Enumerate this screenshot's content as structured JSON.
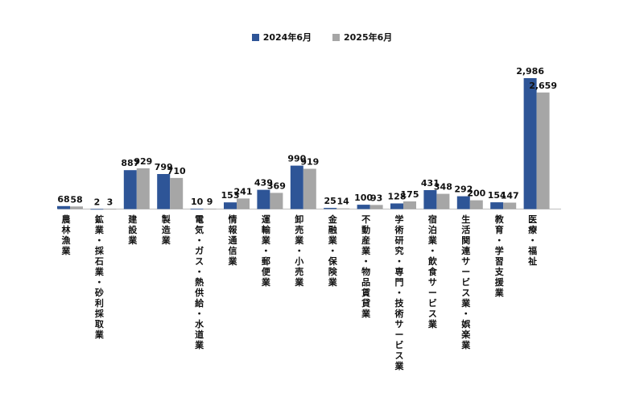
{
  "chart_data": {
    "type": "bar",
    "categories": [
      "農林漁業",
      "鉱業・採石業・砂利採取業",
      "建設業",
      "製造業",
      "電気・ガス・熱供給・水道業",
      "情報通信業",
      "運輸業・郵便業",
      "卸売業・小売業",
      "金融業・保険業",
      "不動産業・物品賃貸業",
      "学術研究・専門・技術サービス業",
      "宿泊業・飲食サービス業",
      "生活関連サービス業・娯楽業",
      "教育・学習支援業",
      "医療・福祉"
    ],
    "series": [
      {
        "name": "2024年6月",
        "color": "#2e5597",
        "values": [
          68,
          2,
          887,
          799,
          10,
          153,
          439,
          990,
          25,
          100,
          128,
          431,
          292,
          154,
          2986
        ],
        "labels": [
          "68",
          "2",
          "887",
          "799",
          "10",
          "153",
          "439",
          "990",
          "25",
          "100",
          "128",
          "431",
          "292",
          "154",
          "2,986"
        ]
      },
      {
        "name": "2025年6月",
        "color": "#a6a6a6",
        "values": [
          58,
          3,
          929,
          710,
          9,
          241,
          369,
          919,
          14,
          93,
          175,
          348,
          200,
          147,
          2659
        ],
        "labels": [
          "58",
          "3",
          "929",
          "710",
          "9",
          "241",
          "369",
          "919",
          "14",
          "93",
          "175",
          "348",
          "200",
          "147",
          "2,659"
        ]
      }
    ],
    "title": "",
    "xlabel": "",
    "ylabel": "",
    "ylim": [
      0,
      3000
    ],
    "grid": false,
    "legend_position": "top-center"
  }
}
